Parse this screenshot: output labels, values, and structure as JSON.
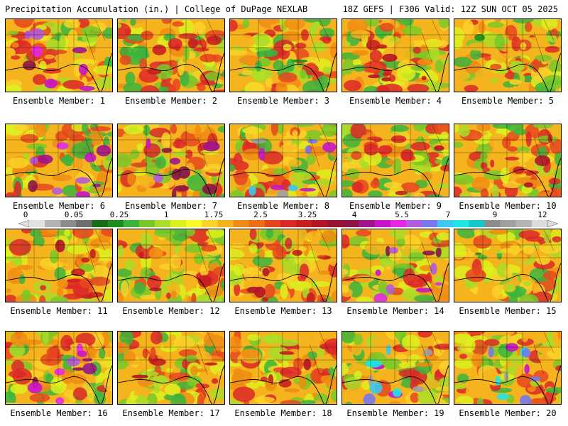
{
  "header": {
    "title": "Precipitation Accumulation (in.) | College of DuPage NEXLAB",
    "run_info": "18Z GEFS | F306 Valid: 12Z SUN OCT 05 2025"
  },
  "colorbar": {
    "labels": [
      "0",
      "0.05",
      "0.25",
      "1",
      "1.75",
      "2.5",
      "3.25",
      "4",
      "5.5",
      "7",
      "9",
      "12"
    ],
    "colors": [
      "#e1e1e1",
      "#b4b4b4",
      "#8c8c8c",
      "#6e6e6e",
      "#146e14",
      "#1e8c1e",
      "#3cb43c",
      "#78c828",
      "#aadc28",
      "#dcf01e",
      "#fafa28",
      "#fad228",
      "#f5b41e",
      "#f08c14",
      "#eb6e14",
      "#e6461e",
      "#dc2828",
      "#c81e1e",
      "#b41428",
      "#961432",
      "#8c1446",
      "#a0148c",
      "#c814c8",
      "#e628e6",
      "#b45adc",
      "#7878f0",
      "#3cc8f0",
      "#1ee6e6",
      "#14c8c8",
      "#8c8c8c",
      "#a0a0a0",
      "#b4b4b4",
      "#dcdcdc"
    ]
  },
  "members": [
    {
      "label": "Ensemble Member: 1",
      "hot": "purple"
    },
    {
      "label": "Ensemble Member: 2",
      "hot": "red"
    },
    {
      "label": "Ensemble Member: 3",
      "hot": "green"
    },
    {
      "label": "Ensemble Member: 4",
      "hot": "red"
    },
    {
      "label": "Ensemble Member: 5",
      "hot": "green"
    },
    {
      "label": "Ensemble Member: 6",
      "hot": "purple"
    },
    {
      "label": "Ensemble Member: 7",
      "hot": "purple"
    },
    {
      "label": "Ensemble Member: 8",
      "hot": "cyan"
    },
    {
      "label": "Ensemble Member: 9",
      "hot": "red"
    },
    {
      "label": "Ensemble Member: 10",
      "hot": "red"
    },
    {
      "label": "Ensemble Member: 11",
      "hot": "red"
    },
    {
      "label": "Ensemble Member: 12",
      "hot": "red"
    },
    {
      "label": "Ensemble Member: 13",
      "hot": "red"
    },
    {
      "label": "Ensemble Member: 14",
      "hot": "purple"
    },
    {
      "label": "Ensemble Member: 15",
      "hot": "green"
    },
    {
      "label": "Ensemble Member: 16",
      "hot": "purple"
    },
    {
      "label": "Ensemble Member: 17",
      "hot": "red"
    },
    {
      "label": "Ensemble Member: 18",
      "hot": "red"
    },
    {
      "label": "Ensemble Member: 19",
      "hot": "cyan"
    },
    {
      "label": "Ensemble Member: 20",
      "hot": "cyan"
    }
  ]
}
